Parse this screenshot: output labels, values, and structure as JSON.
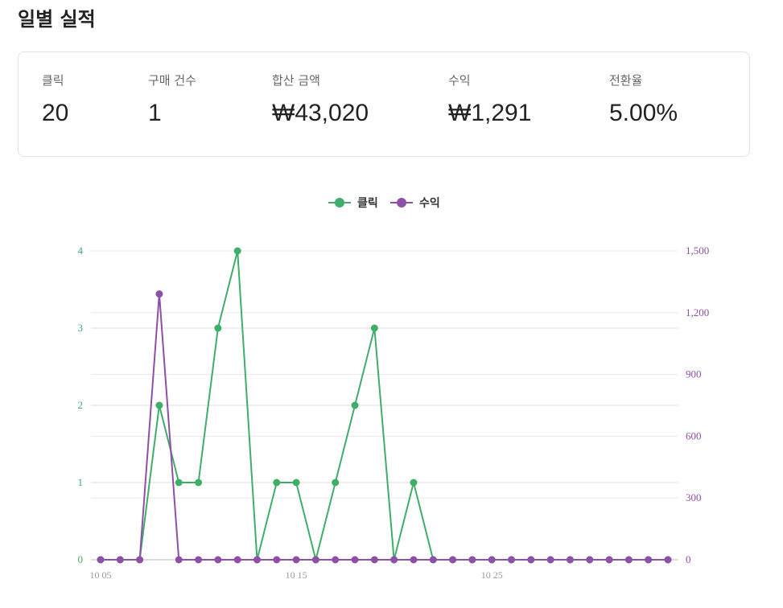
{
  "page_title": "일별 실적",
  "stats": [
    {
      "label": "클릭",
      "value": "20"
    },
    {
      "label": "구매 건수",
      "value": "1"
    },
    {
      "label": "합산 금액",
      "value": "₩43,020"
    },
    {
      "label": "수익",
      "value": "₩1,291"
    },
    {
      "label": "전환율",
      "value": "5.00%"
    }
  ],
  "colors": {
    "clicks": "#3fae6a",
    "revenue": "#8e4fa6"
  },
  "chart_data": {
    "type": "line",
    "x_tick_labels": [
      "10 05",
      "10 15",
      "10 25"
    ],
    "x": [
      "10 05",
      "10 06",
      "10 07",
      "10 08",
      "10 09",
      "10 10",
      "10 11",
      "10 12",
      "10 13",
      "10 14",
      "10 15",
      "10 16",
      "10 17",
      "10 18",
      "10 19",
      "10 20",
      "10 21",
      "10 22",
      "10 23",
      "10 24",
      "10 25",
      "10 26",
      "10 27",
      "10 28",
      "10 29",
      "10 30",
      "10 31",
      "11 01",
      "11 02",
      "11 03"
    ],
    "series": [
      {
        "name": "클릭",
        "axis": "left",
        "color": "#3fae6a",
        "values": [
          0,
          0,
          0,
          2,
          1,
          1,
          3,
          4,
          0,
          1,
          1,
          0,
          1,
          2,
          3,
          0,
          1,
          0,
          0,
          0,
          0,
          0,
          0,
          0,
          0,
          0,
          0,
          0,
          0,
          0
        ]
      },
      {
        "name": "수익",
        "axis": "right",
        "color": "#8e4fa6",
        "values": [
          0,
          0,
          0,
          1291,
          0,
          0,
          0,
          0,
          0,
          0,
          0,
          0,
          0,
          0,
          0,
          0,
          0,
          0,
          0,
          0,
          0,
          0,
          0,
          0,
          0,
          0,
          0,
          0,
          0,
          0
        ]
      }
    ],
    "y_left": {
      "ticks": [
        "0",
        "1",
        "2",
        "3",
        "4"
      ],
      "ylim": [
        0,
        4
      ]
    },
    "y_right": {
      "ticks": [
        "0",
        "300",
        "600",
        "900",
        "1,200",
        "1,500"
      ],
      "ylim": [
        0,
        1500
      ]
    },
    "legend_position": "top-center",
    "grid": true
  }
}
